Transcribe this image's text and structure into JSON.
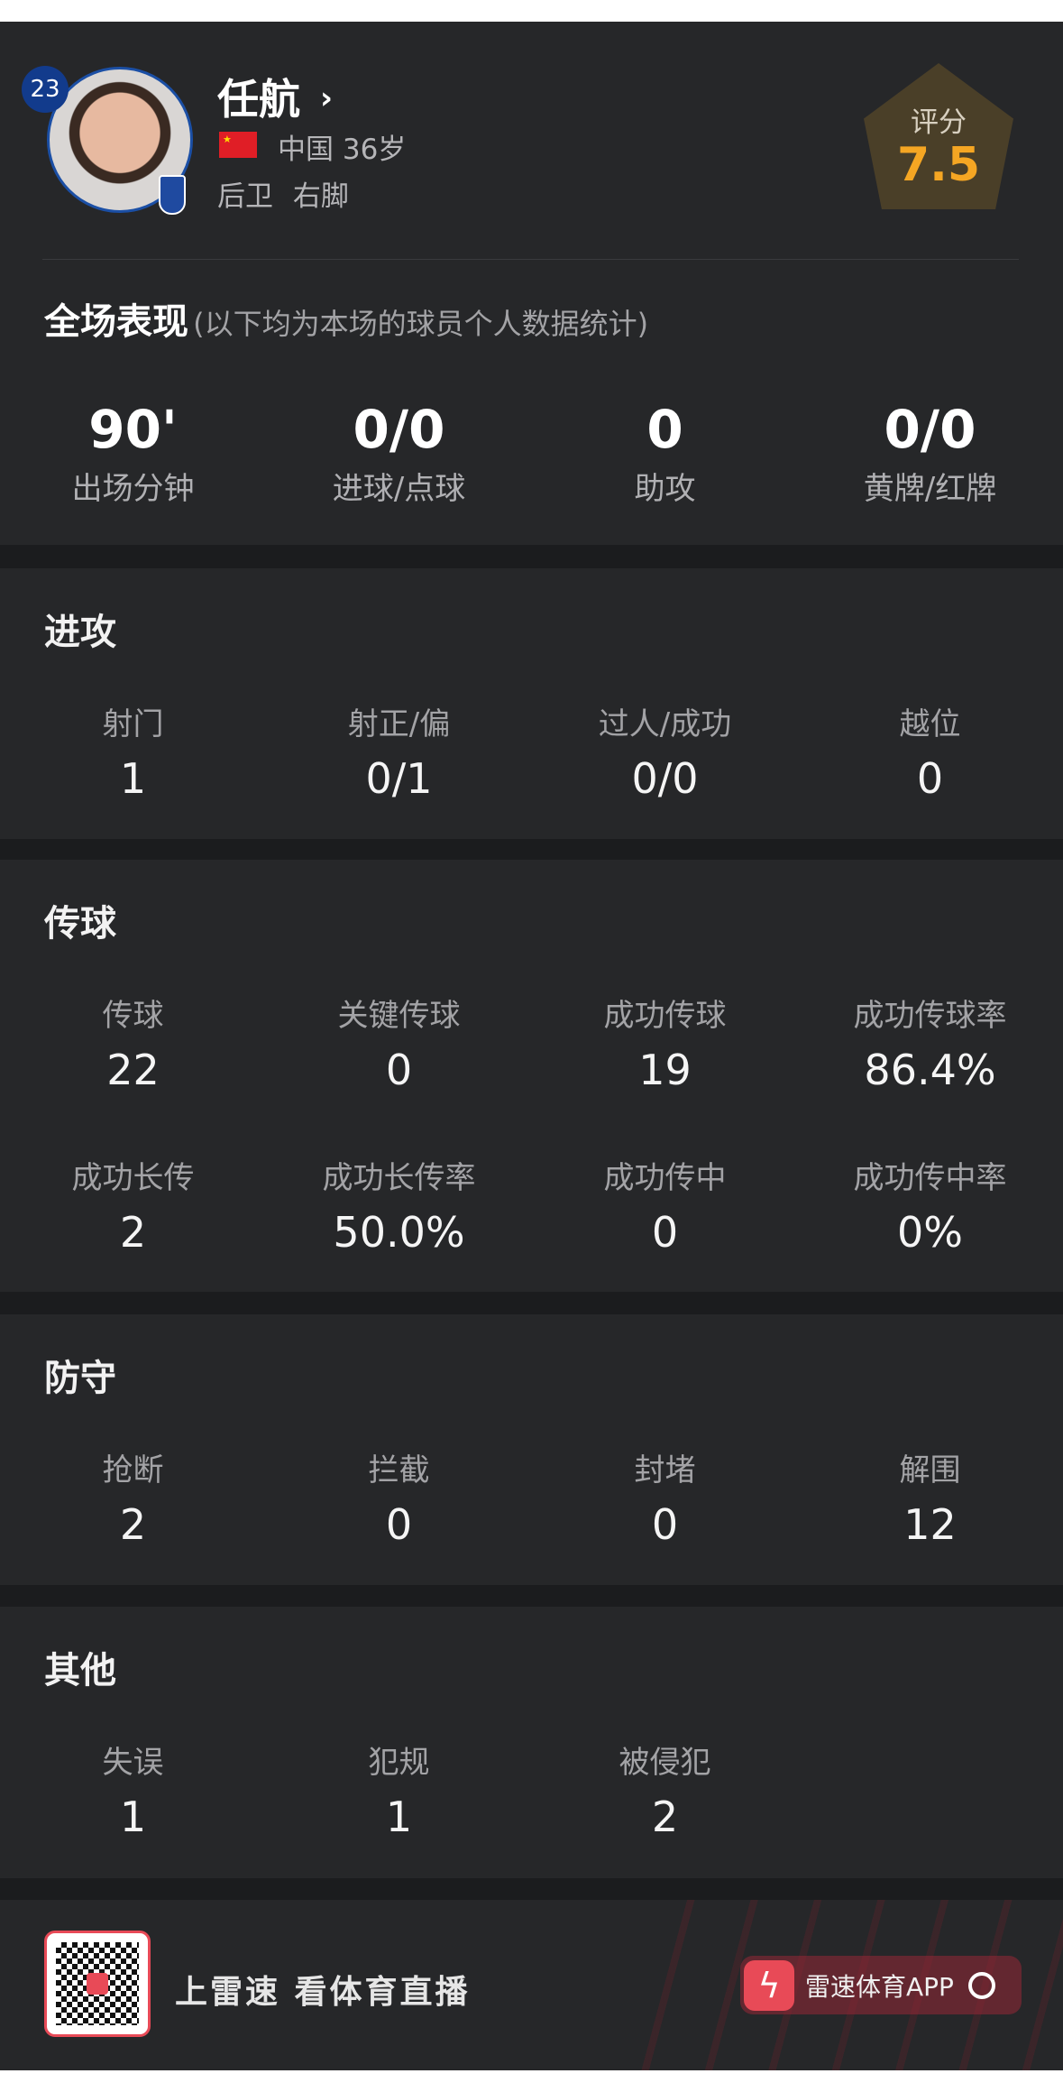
{
  "player": {
    "number": "23",
    "name": "任航",
    "country": "中国",
    "age": "36岁",
    "position": "后卫",
    "foot": "右脚",
    "rating_label": "评分",
    "rating": "7.5"
  },
  "summary": {
    "title": "全场表现",
    "subtitle": "(以下均为本场的球员个人数据统计)",
    "stats": [
      {
        "value": "90'",
        "label": "出场分钟"
      },
      {
        "value": "0/0",
        "label": "进球/点球"
      },
      {
        "value": "0",
        "label": "助攻"
      },
      {
        "value": "0/0",
        "label": "黄牌/红牌"
      }
    ]
  },
  "attack": {
    "title": "进攻",
    "stats": [
      {
        "label": "射门",
        "value": "1"
      },
      {
        "label": "射正/偏",
        "value": "0/1"
      },
      {
        "label": "过人/成功",
        "value": "0/0"
      },
      {
        "label": "越位",
        "value": "0"
      }
    ]
  },
  "passing": {
    "title": "传球",
    "stats": [
      {
        "label": "传球",
        "value": "22"
      },
      {
        "label": "关键传球",
        "value": "0"
      },
      {
        "label": "成功传球",
        "value": "19"
      },
      {
        "label": "成功传球率",
        "value": "86.4%"
      },
      {
        "label": "成功长传",
        "value": "2"
      },
      {
        "label": "成功长传率",
        "value": "50.0%"
      },
      {
        "label": "成功传中",
        "value": "0"
      },
      {
        "label": "成功传中率",
        "value": "0%"
      }
    ]
  },
  "defense": {
    "title": "防守",
    "stats": [
      {
        "label": "抢断",
        "value": "2"
      },
      {
        "label": "拦截",
        "value": "0"
      },
      {
        "label": "封堵",
        "value": "0"
      },
      {
        "label": "解围",
        "value": "12"
      }
    ]
  },
  "other": {
    "title": "其他",
    "stats": [
      {
        "label": "失误",
        "value": "1"
      },
      {
        "label": "犯规",
        "value": "1"
      },
      {
        "label": "被侵犯",
        "value": "2"
      }
    ]
  },
  "footer": {
    "slogan": "上雷速 看体育直播",
    "app_label": "雷速体育APP"
  },
  "colors": {
    "rating": "#f5a623",
    "accent": "#e84a57",
    "panel": "#262729",
    "badge": "#123b8c"
  }
}
